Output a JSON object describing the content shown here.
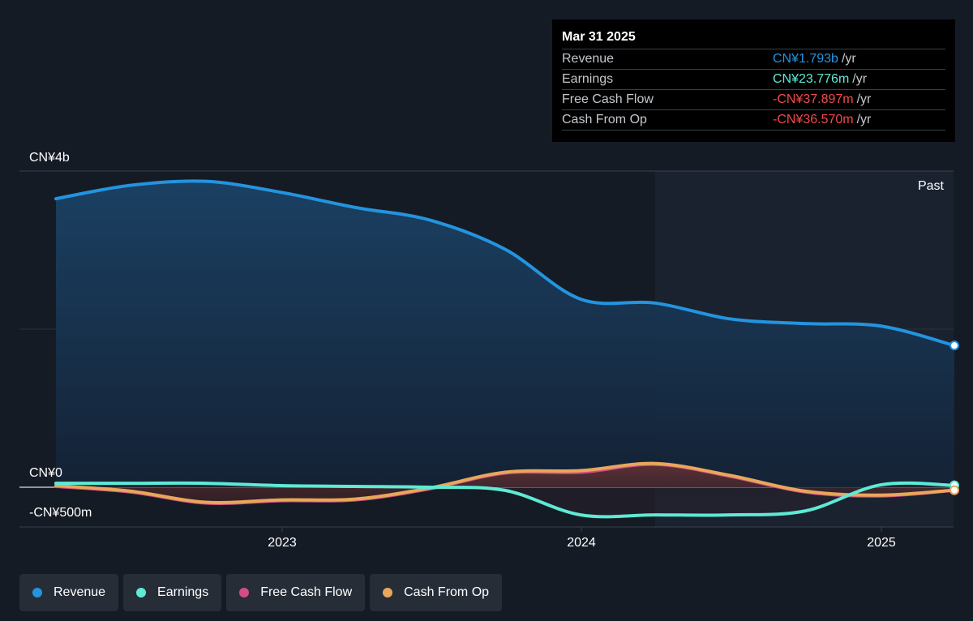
{
  "chart_data": {
    "type": "area",
    "y_axis_labels": [
      "CN¥4b",
      "CN¥0",
      "-CN¥500m"
    ],
    "ylim": [
      -500,
      4000
    ],
    "y_unit": "CN¥m",
    "x_ticks": [
      "2023",
      "2024",
      "2025"
    ],
    "past_label": "Past",
    "grid": true,
    "series": [
      {
        "name": "Revenue",
        "color": "#2394df",
        "x": [
          "2022-03-31",
          "2022-06-30",
          "2022-09-30",
          "2022-12-31",
          "2023-03-31",
          "2023-06-30",
          "2023-09-30",
          "2023-12-31",
          "2024-03-31",
          "2024-06-30",
          "2024-09-30",
          "2024-12-31",
          "2025-03-31"
        ],
        "values": [
          3650,
          3820,
          3870,
          3730,
          3540,
          3380,
          3010,
          2380,
          2330,
          2130,
          2070,
          2040,
          1793
        ]
      },
      {
        "name": "Earnings",
        "color": "#5eead4",
        "x": [
          "2022-03-31",
          "2022-06-30",
          "2022-09-30",
          "2022-12-31",
          "2023-03-31",
          "2023-06-30",
          "2023-09-30",
          "2023-12-31",
          "2024-03-31",
          "2024-06-30",
          "2024-09-30",
          "2024-12-31",
          "2025-03-31"
        ],
        "values": [
          50,
          50,
          50,
          20,
          10,
          0,
          -40,
          -350,
          -350,
          -350,
          -300,
          30,
          23.776
        ]
      },
      {
        "name": "Free Cash Flow",
        "color": "#d14d86",
        "x": [
          "2022-03-31",
          "2022-06-30",
          "2022-09-30",
          "2022-12-31",
          "2023-03-31",
          "2023-06-30",
          "2023-09-30",
          "2023-12-31",
          "2024-03-31",
          "2024-06-30",
          "2024-09-30",
          "2024-12-31",
          "2025-03-31"
        ],
        "values": [
          10,
          -60,
          -200,
          -170,
          -160,
          -20,
          180,
          190,
          290,
          140,
          -60,
          -110,
          -37.897
        ]
      },
      {
        "name": "Cash From Op",
        "color": "#e8a75a",
        "x": [
          "2022-03-31",
          "2022-06-30",
          "2022-09-30",
          "2022-12-31",
          "2023-03-31",
          "2023-06-30",
          "2023-09-30",
          "2023-12-31",
          "2024-03-31",
          "2024-06-30",
          "2024-09-30",
          "2024-12-31",
          "2025-03-31"
        ],
        "values": [
          20,
          -50,
          -190,
          -160,
          -150,
          -10,
          190,
          210,
          300,
          150,
          -50,
          -100,
          -36.57
        ]
      }
    ]
  },
  "tooltip": {
    "date": "Mar 31 2025",
    "rows": [
      {
        "name": "Revenue",
        "value": "CN¥1.793b",
        "unit": "/yr",
        "color": "#2394df"
      },
      {
        "name": "Earnings",
        "value": "CN¥23.776m",
        "unit": "/yr",
        "color": "#5eead4"
      },
      {
        "name": "Free Cash Flow",
        "value": "-CN¥37.897m",
        "unit": "/yr",
        "color": "#f04a4a"
      },
      {
        "name": "Cash From Op",
        "value": "-CN¥36.570m",
        "unit": "/yr",
        "color": "#f04a4a"
      }
    ]
  },
  "legend": [
    {
      "label": "Revenue",
      "color": "#2394df"
    },
    {
      "label": "Earnings",
      "color": "#5eead4"
    },
    {
      "label": "Free Cash Flow",
      "color": "#d14d86"
    },
    {
      "label": "Cash From Op",
      "color": "#e8a75a"
    }
  ]
}
